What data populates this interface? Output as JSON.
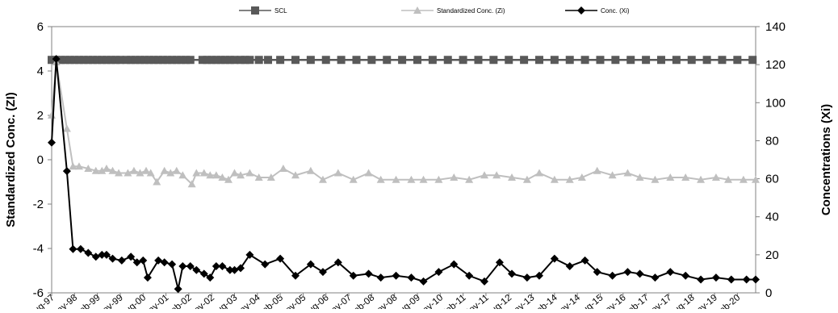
{
  "chart_data": {
    "type": "line",
    "title": "",
    "xlabel": "",
    "ylabel": "Standardized Conc. (ZI)",
    "y2label": "Concentrations (Xi)",
    "ylim": [
      -6,
      6
    ],
    "y_ticks": [
      "6",
      "4",
      "2",
      "0",
      "-2",
      "-4",
      "-6"
    ],
    "y2lim": [
      0,
      140
    ],
    "y2_ticks": [
      "140",
      "120",
      "100",
      "80",
      "60",
      "40",
      "20",
      "0"
    ],
    "x_range_years": [
      1997.6,
      2020.7
    ],
    "x_tick_labels": [
      "Aug-97",
      "May-98",
      "Feb-99",
      "Nov-99",
      "Aug-00",
      "May-01",
      "Feb-02",
      "Nov-02",
      "Aug-03",
      "May-04",
      "Feb-05",
      "Nov-05",
      "Aug-06",
      "May-07",
      "Feb-08",
      "Nov-08",
      "Aug-09",
      "May-10",
      "Feb-11",
      "Nov-11",
      "Aug-12",
      "May-13",
      "Feb-14",
      "Nov-14",
      "Aug-15",
      "May-16",
      "Feb-17",
      "Nov-17",
      "Aug-18",
      "May-19",
      "Feb-20"
    ],
    "grid": false,
    "legend_position": "top",
    "series": [
      {
        "name": "SCL",
        "axis": "left",
        "color": "#595959",
        "marker": "square",
        "x": [
          1997.6,
          1997.75,
          1997.9,
          1998.05,
          1998.2,
          1998.35,
          1998.5,
          1998.65,
          1998.8,
          1998.95,
          1999.1,
          1999.25,
          1999.4,
          1999.55,
          1999.7,
          1999.85,
          2000.05,
          2000.2,
          2000.35,
          2000.5,
          2000.65,
          2000.8,
          2000.95,
          2001.1,
          2001.25,
          2001.4,
          2001.55,
          2001.7,
          2001.85,
          2002.0,
          2002.15,
          2002.55,
          2002.7,
          2002.85,
          2003.0,
          2003.15,
          2003.3,
          2003.45,
          2003.6,
          2003.8,
          2003.95,
          2004.1,
          2004.4,
          2004.7,
          2005.1,
          2005.6,
          2006.1,
          2006.6,
          2007.1,
          2007.6,
          2008.1,
          2008.6,
          2009.1,
          2009.6,
          2010.1,
          2010.6,
          2011.1,
          2011.6,
          2012.1,
          2012.6,
          2013.1,
          2013.6,
          2014.1,
          2014.6,
          2015.1,
          2015.6,
          2016.1,
          2016.6,
          2017.1,
          2017.6,
          2018.1,
          2018.6,
          2019.1,
          2019.6,
          2020.1,
          2020.6
        ],
        "values": [
          4.5,
          4.5,
          4.5,
          4.5,
          4.5,
          4.5,
          4.5,
          4.5,
          4.5,
          4.5,
          4.5,
          4.5,
          4.5,
          4.5,
          4.5,
          4.5,
          4.5,
          4.5,
          4.5,
          4.5,
          4.5,
          4.5,
          4.5,
          4.5,
          4.5,
          4.5,
          4.5,
          4.5,
          4.5,
          4.5,
          4.5,
          4.5,
          4.5,
          4.5,
          4.5,
          4.5,
          4.5,
          4.5,
          4.5,
          4.5,
          4.5,
          4.5,
          4.5,
          4.5,
          4.5,
          4.5,
          4.5,
          4.5,
          4.5,
          4.5,
          4.5,
          4.5,
          4.5,
          4.5,
          4.5,
          4.5,
          4.5,
          4.5,
          4.5,
          4.5,
          4.5,
          4.5,
          4.5,
          4.5,
          4.5,
          4.5,
          4.5,
          4.5,
          4.5,
          4.5,
          4.5,
          4.5,
          4.5,
          4.5,
          4.5,
          4.5
        ]
      },
      {
        "name": "Standardized Conc. (Zi)",
        "axis": "left",
        "color": "#bfbfbf",
        "marker": "triangle",
        "x": [
          1997.6,
          1997.75,
          1998.1,
          1998.3,
          1998.5,
          1998.8,
          1999.05,
          1999.25,
          1999.4,
          1999.6,
          1999.8,
          2000.1,
          2000.3,
          2000.5,
          2000.7,
          2000.85,
          2001.05,
          2001.3,
          2001.5,
          2001.7,
          2001.9,
          2002.2,
          2002.35,
          2002.6,
          2002.8,
          2003.0,
          2003.2,
          2003.4,
          2003.6,
          2003.8,
          2004.1,
          2004.4,
          2004.8,
          2005.2,
          2005.6,
          2006.1,
          2006.5,
          2007.0,
          2007.5,
          2008.0,
          2008.4,
          2008.9,
          2009.4,
          2009.8,
          2010.3,
          2010.8,
          2011.3,
          2011.8,
          2012.2,
          2012.7,
          2013.2,
          2013.6,
          2014.1,
          2014.6,
          2015.0,
          2015.5,
          2016.0,
          2016.5,
          2016.9,
          2017.4,
          2017.9,
          2018.4,
          2018.9,
          2019.4,
          2019.8,
          2020.3,
          2020.7
        ],
        "values": [
          2.0,
          4.4,
          1.4,
          -0.3,
          -0.3,
          -0.4,
          -0.5,
          -0.5,
          -0.4,
          -0.5,
          -0.6,
          -0.6,
          -0.5,
          -0.6,
          -0.5,
          -0.6,
          -1.0,
          -0.5,
          -0.6,
          -0.5,
          -0.7,
          -1.1,
          -0.6,
          -0.6,
          -0.7,
          -0.7,
          -0.8,
          -0.9,
          -0.6,
          -0.7,
          -0.6,
          -0.8,
          -0.8,
          -0.4,
          -0.7,
          -0.5,
          -0.9,
          -0.6,
          -0.9,
          -0.6,
          -0.9,
          -0.9,
          -0.9,
          -0.9,
          -0.9,
          -0.8,
          -0.9,
          -0.7,
          -0.7,
          -0.8,
          -0.9,
          -0.6,
          -0.9,
          -0.9,
          -0.8,
          -0.5,
          -0.7,
          -0.6,
          -0.8,
          -0.9,
          -0.8,
          -0.8,
          -0.9,
          -0.8,
          -0.9,
          -0.9,
          -0.9
        ]
      },
      {
        "name": "Conc. (Xi)",
        "axis": "right",
        "color": "#000000",
        "marker": "diamond",
        "x": [
          1997.6,
          1997.75,
          1998.1,
          1998.3,
          1998.55,
          1998.8,
          1999.05,
          1999.25,
          1999.4,
          1999.6,
          1999.9,
          2000.2,
          2000.4,
          2000.6,
          2000.75,
          2001.1,
          2001.3,
          2001.55,
          2001.75,
          2001.9,
          2002.15,
          2002.35,
          2002.6,
          2002.8,
          2003.0,
          2003.2,
          2003.45,
          2003.6,
          2003.8,
          2004.1,
          2004.6,
          2005.1,
          2005.6,
          2006.1,
          2006.5,
          2007.0,
          2007.5,
          2008.0,
          2008.4,
          2008.9,
          2009.4,
          2009.8,
          2010.3,
          2010.8,
          2011.3,
          2011.8,
          2012.3,
          2012.7,
          2013.2,
          2013.6,
          2014.1,
          2014.6,
          2015.1,
          2015.5,
          2016.0,
          2016.5,
          2016.9,
          2017.4,
          2017.9,
          2018.4,
          2018.9,
          2019.4,
          2019.9,
          2020.4,
          2020.7
        ],
        "values": [
          79,
          123,
          64,
          23,
          23,
          21,
          19,
          20,
          20,
          18,
          17,
          19,
          16,
          17,
          8,
          17,
          16,
          15,
          2,
          14,
          14,
          12,
          10,
          8,
          14,
          14,
          12,
          12,
          13,
          20,
          15,
          18,
          9,
          15,
          11,
          16,
          9,
          10,
          8,
          9,
          8,
          6,
          11,
          15,
          9,
          6,
          16,
          10,
          8,
          9,
          18,
          14,
          17,
          11,
          9,
          11,
          10,
          8,
          11,
          9,
          7,
          8,
          7,
          7,
          7
        ]
      }
    ]
  }
}
